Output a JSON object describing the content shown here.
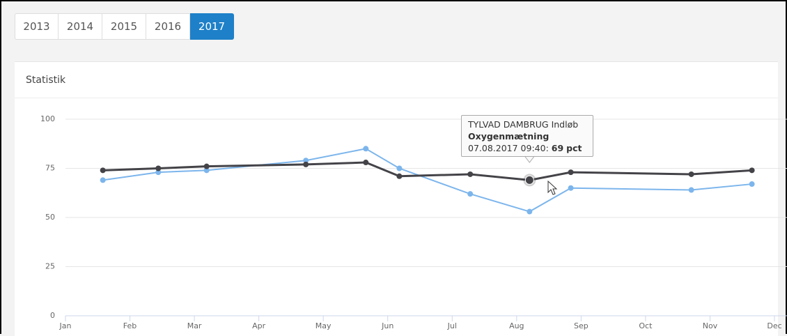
{
  "tabs": {
    "items": [
      "2013",
      "2014",
      "2015",
      "2016",
      "2017"
    ],
    "active": 4
  },
  "panel": {
    "title": "Statistik"
  },
  "chart_data": {
    "type": "line",
    "xlim": [
      0,
      11
    ],
    "xticks": [
      {
        "value": 0,
        "label": "Jan"
      },
      {
        "value": 1,
        "label": "Feb"
      },
      {
        "value": 2,
        "label": "Mar"
      },
      {
        "value": 3,
        "label": "Apr"
      },
      {
        "value": 4,
        "label": "May"
      },
      {
        "value": 5,
        "label": "Jun"
      },
      {
        "value": 6,
        "label": "Jul"
      },
      {
        "value": 7,
        "label": "Aug"
      },
      {
        "value": 8,
        "label": "Sep"
      },
      {
        "value": 9,
        "label": "Oct"
      },
      {
        "value": 10,
        "label": "Nov"
      },
      {
        "value": 11,
        "label": "Dec"
      }
    ],
    "ylim": [
      0,
      100
    ],
    "yticks": [
      0,
      25,
      50,
      75,
      100
    ],
    "grid": true,
    "x": [
      0.58,
      1.44,
      2.19,
      3.73,
      4.66,
      5.18,
      6.28,
      7.2,
      7.84,
      9.71,
      10.65
    ],
    "series": [
      {
        "color": "#7cb5ec",
        "values": [
          69,
          73,
          74,
          79,
          85,
          75,
          62,
          53,
          65,
          64,
          67
        ]
      },
      {
        "color": "#434348",
        "values": [
          74,
          75,
          76,
          77,
          78,
          71,
          72,
          69,
          73,
          72,
          74
        ]
      }
    ],
    "tooltip": {
      "series": 1,
      "index": 7,
      "station": "TYLVAD DAMBRUG Indløb",
      "measure": "Oxygenmætning",
      "date": "07.08.2017 09:40:",
      "unit": "pct"
    }
  }
}
